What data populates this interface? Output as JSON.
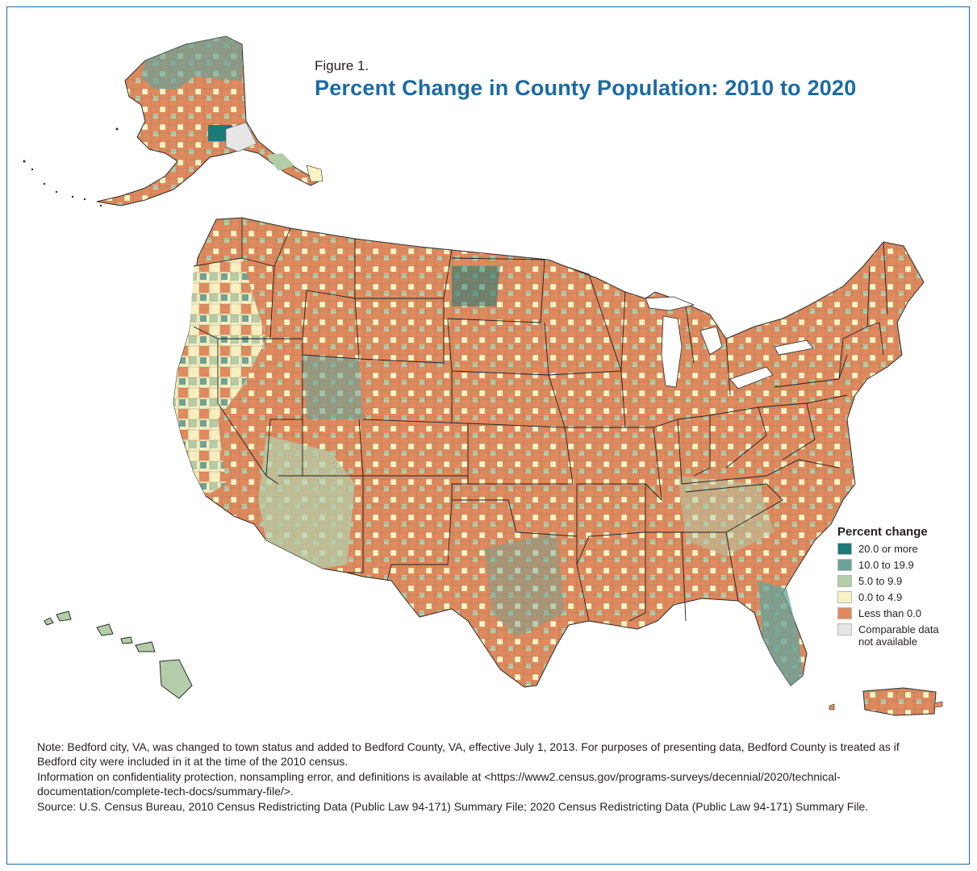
{
  "figure_label": "Figure 1.",
  "title": "Percent Change in County Population: 2010 to 2020",
  "legend": {
    "title": "Percent change",
    "items": [
      {
        "label": "20.0 or more",
        "color": "#1a7a78"
      },
      {
        "label": "10.0 to 19.9",
        "color": "#6aa397"
      },
      {
        "label": "5.0 to 9.9",
        "color": "#b3cda9"
      },
      {
        "label": "0.0 to 4.9",
        "color": "#f7f3c4"
      },
      {
        "label": "Less than 0.0",
        "color": "#df8a5e"
      },
      {
        "label": "Comparable data not available",
        "color": "#e6e6e6"
      }
    ]
  },
  "notes": {
    "note": "Note: Bedford city, VA, was changed to town status and added to Bedford County, VA, effective July 1, 2013. For purposes of presenting data, Bedford County is treated as if Bedford city were included in it at the time of the 2010 census.",
    "info": "Information on confidentiality protection, nonsampling error, and definitions is available at <https://www2.census.gov/programs-surveys/decennial/2020/technical-documentation/complete-tech-docs/summary-file/>.",
    "source": "Source: U.S. Census Bureau, 2010 Census Redistricting Data (Public Law 94-171) Summary File; 2020 Census Redistricting Data (Public Law 94-171) Summary File."
  }
}
